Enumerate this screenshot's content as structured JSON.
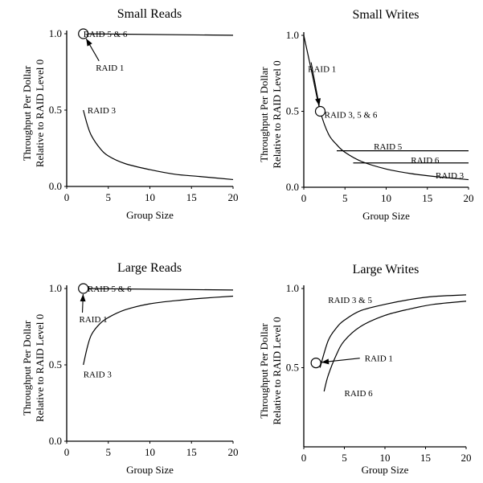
{
  "chart_data": [
    {
      "type": "line",
      "title": "Small Reads",
      "xlabel": "Group Size",
      "ylabel": [
        "Throughput Per Dollar",
        "Relative to RAID Level 0"
      ],
      "xlim": [
        0,
        20
      ],
      "ylim": [
        0,
        1
      ],
      "xticks": [
        "0",
        "5",
        "10",
        "15",
        "20"
      ],
      "yticks": [
        "0.0",
        "0.5",
        "1.0"
      ],
      "grid": false,
      "series": [
        {
          "x": [
            2,
            20
          ],
          "y": [
            1.0,
            0.99
          ]
        },
        {
          "x": [
            2,
            2.5,
            3,
            4,
            5,
            7,
            10,
            13,
            16,
            20
          ],
          "y": [
            0.5,
            0.4,
            0.33,
            0.25,
            0.2,
            0.15,
            0.11,
            0.08,
            0.065,
            0.045
          ]
        }
      ],
      "markers": [
        {
          "x": 2,
          "y": 1.0
        }
      ],
      "annotations": [
        {
          "text": "RAID 5 & 6",
          "x": 2,
          "y": 1.0
        },
        {
          "text": "RAID 1",
          "x": 3.5,
          "y": 0.78,
          "arrow_to": {
            "x": 2,
            "y": 1.0
          }
        },
        {
          "text": "RAID 3",
          "x": 2.5,
          "y": 0.5
        }
      ]
    },
    {
      "type": "line",
      "title": "Small Writes",
      "xlabel": "Group Size",
      "ylabel": [
        "Throughput Per Dollar",
        "Relative to RAID Level 0"
      ],
      "xlim": [
        0,
        20
      ],
      "ylim": [
        0,
        1
      ],
      "xticks": [
        "0",
        "5",
        "10",
        "15",
        "20"
      ],
      "yticks": [
        "0.0",
        "0.5",
        "1.0"
      ],
      "grid": false,
      "series": [
        {
          "x": [
            0,
            1,
            2,
            3,
            4,
            5,
            7,
            10,
            13,
            16,
            20
          ],
          "y": [
            1.0,
            0.75,
            0.5,
            0.35,
            0.28,
            0.23,
            0.17,
            0.12,
            0.09,
            0.07,
            0.05
          ]
        },
        {
          "x": [
            4,
            20
          ],
          "y": [
            0.24,
            0.24
          ]
        },
        {
          "x": [
            6,
            20
          ],
          "y": [
            0.16,
            0.16
          ]
        }
      ],
      "markers": [
        {
          "x": 2,
          "y": 0.5
        }
      ],
      "annotations": [
        {
          "text": "RAID 1",
          "x": 0.5,
          "y": 0.78,
          "arrow_to": {
            "x": 2,
            "y": 0.5
          }
        },
        {
          "text": "RAID 3, 5 & 6",
          "x": 2.5,
          "y": 0.48
        },
        {
          "text": "RAID 5",
          "x": 8.5,
          "y": 0.27
        },
        {
          "text": "RAID 6",
          "x": 13,
          "y": 0.18
        },
        {
          "text": "RAID 3",
          "x": 16,
          "y": 0.08
        }
      ]
    },
    {
      "type": "line",
      "title": "Large Reads",
      "xlabel": "Group Size",
      "ylabel": [
        "Throughput Per Dollar",
        "Relative to RAID Level 0"
      ],
      "xlim": [
        0,
        20
      ],
      "ylim": [
        0,
        1
      ],
      "xticks": [
        "0",
        "5",
        "10",
        "15",
        "20"
      ],
      "yticks": [
        "0.0",
        "0.5",
        "1.0"
      ],
      "grid": false,
      "series": [
        {
          "x": [
            2,
            20
          ],
          "y": [
            1.0,
            0.99
          ]
        },
        {
          "x": [
            2,
            2.5,
            3,
            4,
            5,
            7,
            10,
            13,
            16,
            20
          ],
          "y": [
            0.5,
            0.62,
            0.7,
            0.77,
            0.81,
            0.86,
            0.9,
            0.92,
            0.935,
            0.95
          ]
        }
      ],
      "markers": [
        {
          "x": 2,
          "y": 1.0
        }
      ],
      "annotations": [
        {
          "text": "RAID 5 & 6",
          "x": 2.5,
          "y": 1.0
        },
        {
          "text": "RAID 1",
          "x": 1.5,
          "y": 0.8,
          "arrow_to": {
            "x": 2,
            "y": 1.0
          }
        },
        {
          "text": "RAID 3",
          "x": 2,
          "y": 0.44
        }
      ]
    },
    {
      "type": "line",
      "title": "Large Writes",
      "xlabel": "Group Size",
      "ylabel": [
        "Throughput Per Dollar",
        "Relative to RAID Level 0"
      ],
      "xlim": [
        0,
        20
      ],
      "ylim": [
        0,
        1
      ],
      "xticks": [
        "0",
        "5",
        "10",
        "15",
        "20"
      ],
      "yticks": [
        "0.5",
        "1.0"
      ],
      "grid": false,
      "series": [
        {
          "x": [
            2,
            3,
            4,
            5,
            7,
            10,
            13,
            16,
            20
          ],
          "y": [
            0.5,
            0.67,
            0.75,
            0.8,
            0.86,
            0.9,
            0.93,
            0.95,
            0.96
          ]
        },
        {
          "x": [
            2.5,
            3,
            4,
            5,
            7,
            10,
            13,
            16,
            20
          ],
          "y": [
            0.35,
            0.45,
            0.58,
            0.67,
            0.76,
            0.83,
            0.87,
            0.9,
            0.92
          ]
        }
      ],
      "markers": [
        {
          "x": 1.5,
          "y": 0.53
        }
      ],
      "annotations": [
        {
          "text": "RAID 3 & 5",
          "x": 3,
          "y": 0.93
        },
        {
          "text": "RAID 1",
          "x": 7.5,
          "y": 0.56,
          "arrow_to": {
            "x": 1.5,
            "y": 0.53
          }
        },
        {
          "text": "RAID 6",
          "x": 5,
          "y": 0.34
        }
      ]
    }
  ]
}
